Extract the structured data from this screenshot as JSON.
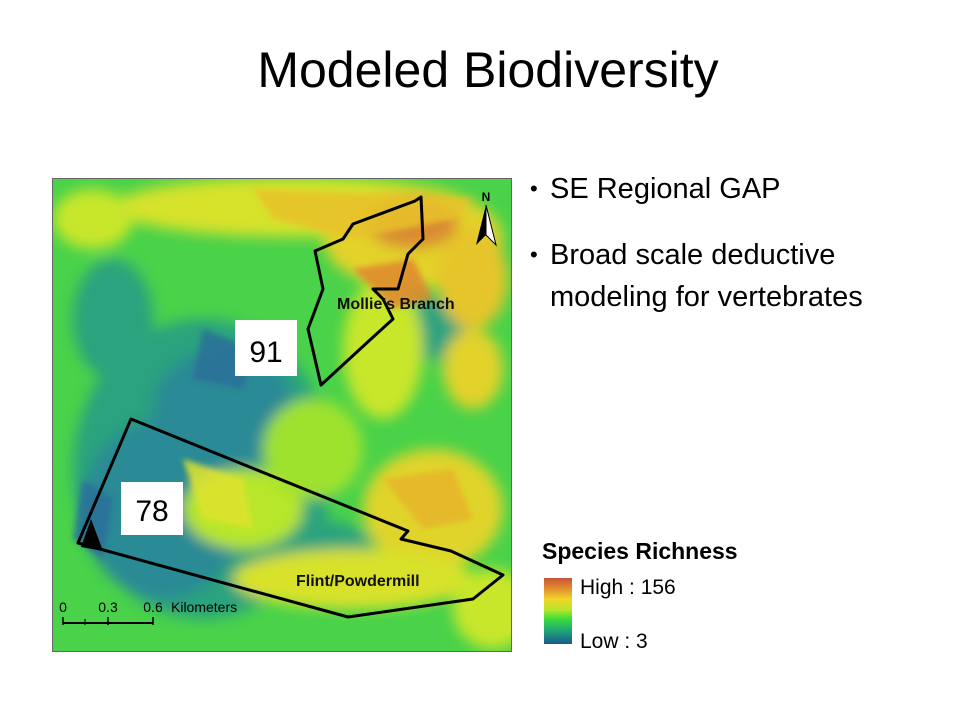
{
  "slide": {
    "title": "Modeled Biodiversity"
  },
  "bullets": [
    {
      "text": "SE Regional GAP"
    },
    {
      "text": "Broad scale deductive modeling for vertebrates"
    }
  ],
  "map": {
    "north_label": "N",
    "regions": [
      {
        "name": "Mollie's Branch",
        "value_label": "91"
      },
      {
        "name": "Flint/Powdermill",
        "value_label": "78"
      }
    ],
    "scale_bar": {
      "ticks": [
        "0",
        "0.3",
        "0.6"
      ],
      "unit": "Kilometers"
    }
  },
  "legend": {
    "title": "Species Richness",
    "high_label": "High : 156",
    "low_label": "Low : 3",
    "high_color": "#c8543a",
    "low_color": "#1a5a8c"
  }
}
